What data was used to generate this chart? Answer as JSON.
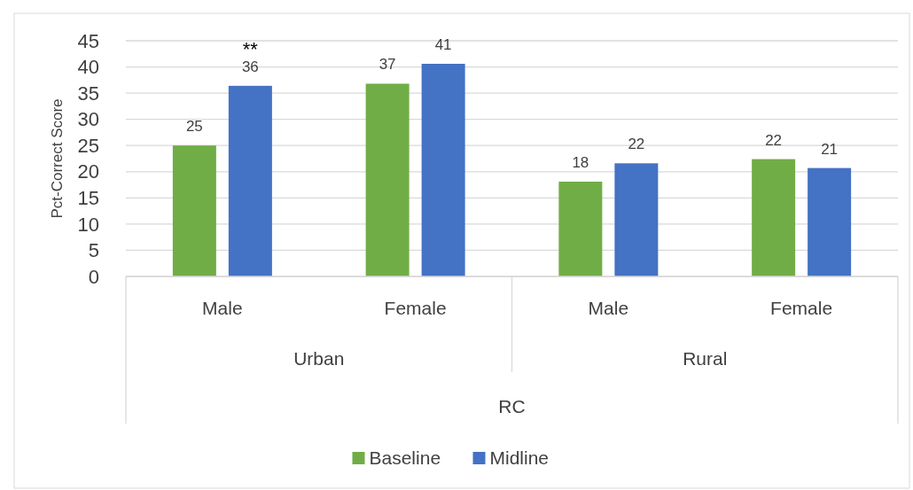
{
  "chart_data": {
    "type": "bar",
    "ylabel": "Pct-Correct Score",
    "categories": [
      "Male",
      "Female",
      "Male",
      "Female"
    ],
    "series": [
      {
        "name": "Baseline",
        "color": "#70ad47",
        "values": [
          25,
          36.8,
          18.1,
          22.4
        ],
        "value_labels": [
          "25",
          "37",
          "18",
          "22"
        ]
      },
      {
        "name": "Midline",
        "color": "#4472c4",
        "values": [
          36.4,
          40.6,
          21.6,
          20.7
        ],
        "value_labels": [
          "36",
          "41",
          "22",
          "21"
        ]
      }
    ],
    "ylim": [
      0,
      45
    ],
    "yticks": [
      0,
      5,
      10,
      15,
      20,
      25,
      30,
      35,
      40,
      45
    ],
    "grid": "y",
    "legend": "bottom",
    "annotations": [
      "Urban",
      "Rural",
      "RC",
      "**"
    ]
  }
}
